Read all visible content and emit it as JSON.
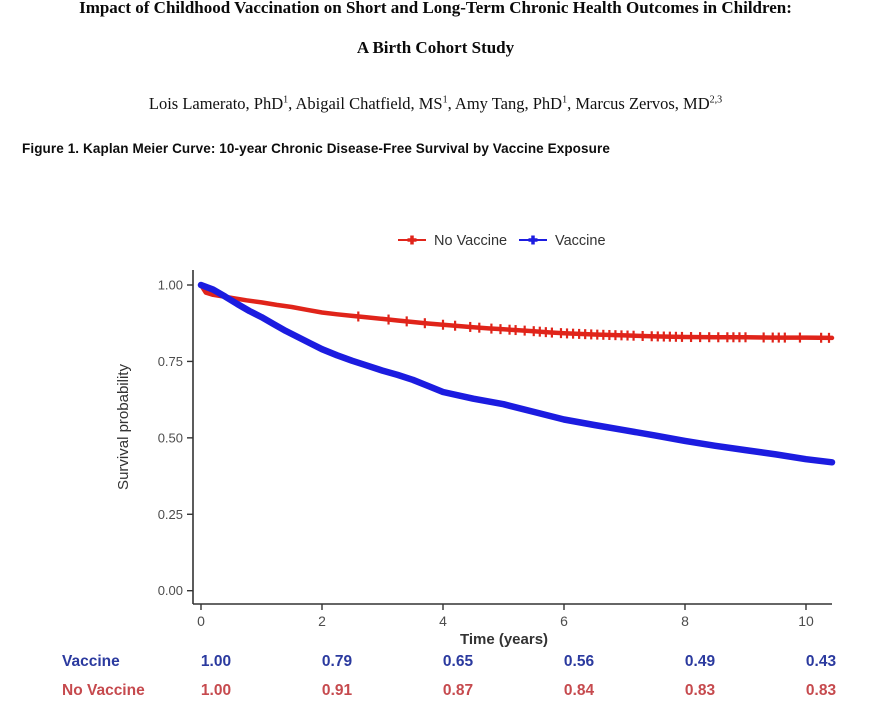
{
  "page": {
    "title_line1": "Impact of Childhood Vaccination on Short and Long-Term Chronic Health Outcomes in Children:",
    "title_line2": "A Birth Cohort Study",
    "authors": [
      {
        "text": "Lois Lamerato, PhD",
        "sup": "1"
      },
      {
        "text": ", Abigail Chatfield, MS",
        "sup": "1"
      },
      {
        "text": ", Amy Tang, PhD",
        "sup": "1"
      },
      {
        "text": ", Marcus Zervos, MD",
        "sup": "2,3"
      }
    ],
    "figure_caption": "Figure 1. Kaplan Meier Curve: 10-year Chronic Disease-Free Survival by Vaccine Exposure"
  },
  "chart_data": {
    "type": "line",
    "subtype": "kaplan-meier",
    "title": "",
    "xlabel": "Time (years)",
    "ylabel": "Survival probability",
    "xlim": [
      0,
      10.5
    ],
    "ylim": [
      0,
      1.0
    ],
    "xticks": [
      0,
      2,
      4,
      6,
      8,
      10
    ],
    "xtick_labels": [
      "0",
      "2",
      "4",
      "6",
      "8",
      "10"
    ],
    "yticks": [
      0,
      0.25,
      0.5,
      0.75,
      1.0
    ],
    "ytick_labels": [
      "0.00",
      "0.25",
      "0.50",
      "0.75",
      "1.00"
    ],
    "grid": false,
    "legend_position": "top",
    "axis_color": "#333333",
    "tick_label_color": "#4d4d4d",
    "axis_title_color": "#333333",
    "legend_text_color": "#333333",
    "series": [
      {
        "name": "No Vaccine",
        "color": "#E0241A",
        "stroke_width": 4.5,
        "x": [
          0,
          0.08,
          0.2,
          0.35,
          0.5,
          0.75,
          1,
          1.25,
          1.5,
          1.75,
          2,
          2.25,
          2.5,
          2.75,
          3,
          3.25,
          3.5,
          3.75,
          4,
          4.25,
          4.5,
          4.75,
          5,
          5.25,
          5.5,
          5.75,
          6,
          6.5,
          7,
          7.5,
          8,
          8.5,
          9,
          9.5,
          10,
          10.43
        ],
        "y": [
          1.0,
          0.975,
          0.968,
          0.963,
          0.958,
          0.95,
          0.943,
          0.935,
          0.928,
          0.919,
          0.91,
          0.904,
          0.899,
          0.894,
          0.889,
          0.884,
          0.879,
          0.874,
          0.87,
          0.866,
          0.862,
          0.858,
          0.855,
          0.852,
          0.849,
          0.845,
          0.842,
          0.838,
          0.835,
          0.832,
          0.83,
          0.829,
          0.829,
          0.828,
          0.828,
          0.827
        ],
        "censor_x": [
          2.6,
          3.1,
          3.4,
          3.7,
          4.0,
          4.2,
          4.45,
          4.6,
          4.8,
          4.95,
          5.1,
          5.2,
          5.35,
          5.5,
          5.6,
          5.7,
          5.8,
          5.95,
          6.05,
          6.15,
          6.25,
          6.35,
          6.45,
          6.55,
          6.65,
          6.75,
          6.85,
          6.95,
          7.05,
          7.15,
          7.3,
          7.45,
          7.55,
          7.65,
          7.75,
          7.85,
          7.95,
          8.1,
          8.25,
          8.4,
          8.55,
          8.7,
          8.8,
          8.9,
          9.0,
          9.3,
          9.45,
          9.55,
          9.65,
          9.9,
          10.25,
          10.38
        ]
      },
      {
        "name": "Vaccine",
        "color": "#1C1CE0",
        "stroke_width": 6.5,
        "x": [
          0,
          0.2,
          0.4,
          0.6,
          0.8,
          1,
          1.2,
          1.4,
          1.6,
          1.8,
          2,
          2.25,
          2.5,
          2.75,
          3,
          3.25,
          3.5,
          3.75,
          4,
          4.5,
          5,
          5.5,
          6,
          6.5,
          7,
          7.5,
          8,
          8.5,
          9,
          9.5,
          10,
          10.43
        ],
        "y": [
          1.0,
          0.985,
          0.962,
          0.938,
          0.915,
          0.895,
          0.872,
          0.85,
          0.83,
          0.81,
          0.79,
          0.77,
          0.752,
          0.736,
          0.72,
          0.706,
          0.69,
          0.67,
          0.65,
          0.628,
          0.61,
          0.585,
          0.56,
          0.542,
          0.525,
          0.508,
          0.49,
          0.474,
          0.46,
          0.446,
          0.43,
          0.42
        ],
        "censor_x": []
      }
    ],
    "risk_table": {
      "times": [
        0,
        2,
        4,
        6,
        8,
        10
      ],
      "rows": [
        {
          "label": "Vaccine",
          "color": "#2B3A9F",
          "values": [
            "1.00",
            "0.79",
            "0.65",
            "0.56",
            "0.49",
            "0.43"
          ]
        },
        {
          "label": "No Vaccine",
          "color": "#C64A4E",
          "values": [
            "1.00",
            "0.91",
            "0.87",
            "0.84",
            "0.83",
            "0.83"
          ]
        }
      ]
    }
  }
}
